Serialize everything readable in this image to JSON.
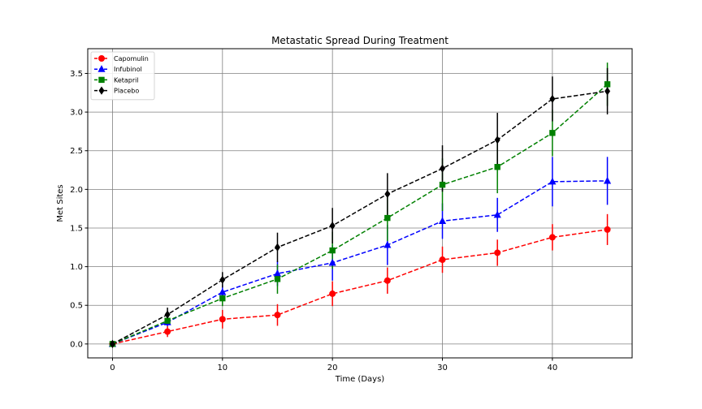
{
  "chart_data": {
    "type": "line",
    "title": "Metastatic Spread During Treatment",
    "xlabel": "Time (Days)",
    "ylabel": "Met Sites",
    "xlim": [
      -2.25,
      47.25
    ],
    "ylim": [
      -0.18,
      3.82
    ],
    "xticks": [
      0,
      10,
      20,
      30,
      40
    ],
    "yticks": [
      0.0,
      0.5,
      1.0,
      1.5,
      2.0,
      2.5,
      3.0,
      3.5
    ],
    "ytick_labels": [
      "0.0",
      "0.5",
      "1.0",
      "1.5",
      "2.0",
      "2.5",
      "3.0",
      "3.5"
    ],
    "grid": true,
    "legend_position": "top-left",
    "x": [
      0,
      5,
      10,
      15,
      20,
      25,
      30,
      35,
      40,
      45
    ],
    "series": [
      {
        "name": "Capomulin",
        "color": "#ff0000",
        "marker": "circle",
        "values": [
          0.0,
          0.16,
          0.32,
          0.375,
          0.65,
          0.82,
          1.09,
          1.18,
          1.38,
          1.48
        ],
        "errors": [
          0.0,
          0.07,
          0.12,
          0.14,
          0.16,
          0.17,
          0.17,
          0.17,
          0.17,
          0.2
        ]
      },
      {
        "name": "Infubinol",
        "color": "#0000ff",
        "marker": "triangle",
        "values": [
          0.0,
          0.28,
          0.67,
          0.91,
          1.05,
          1.28,
          1.59,
          1.67,
          2.1,
          2.11
        ],
        "errors": [
          0.0,
          0.05,
          0.1,
          0.16,
          0.23,
          0.26,
          0.23,
          0.22,
          0.32,
          0.31
        ]
      },
      {
        "name": "Ketapril",
        "color": "#008000",
        "marker": "square",
        "values": [
          0.0,
          0.3,
          0.59,
          0.84,
          1.21,
          1.63,
          2.06,
          2.29,
          2.73,
          3.36
        ],
        "errors": [
          0.0,
          0.04,
          0.1,
          0.19,
          0.24,
          0.3,
          0.34,
          0.34,
          0.3,
          0.28
        ]
      },
      {
        "name": "Placebo",
        "color": "#000000",
        "marker": "diamond",
        "values": [
          0.0,
          0.38,
          0.83,
          1.25,
          1.53,
          1.94,
          2.27,
          2.64,
          3.17,
          3.27
        ],
        "errors": [
          0.0,
          0.09,
          0.1,
          0.19,
          0.23,
          0.27,
          0.3,
          0.35,
          0.29,
          0.3
        ]
      }
    ]
  }
}
